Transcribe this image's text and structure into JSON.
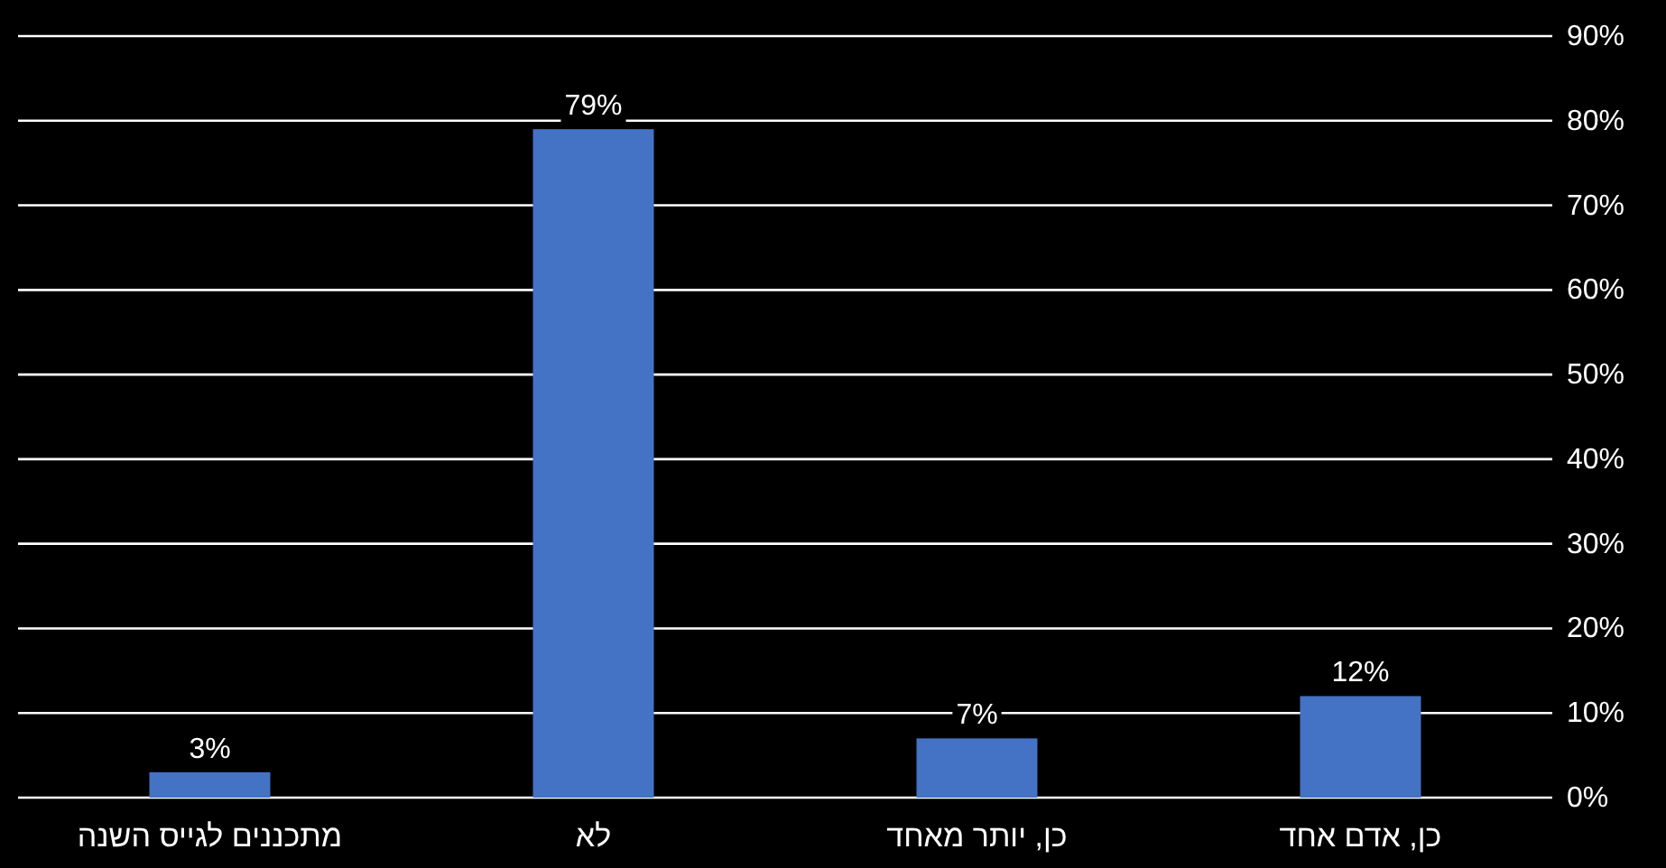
{
  "chart_data": {
    "type": "bar",
    "categories": [
      "מתכננים לגייס השנה",
      "לא",
      "כן, יותר מאחד",
      "כן, אדם אחד"
    ],
    "values": [
      3,
      79,
      7,
      12
    ],
    "value_labels": [
      "3%",
      "79%",
      "7%",
      "12%"
    ],
    "color": "#4472c4",
    "ylim": [
      0,
      90
    ],
    "yticks": [
      {
        "value": 0,
        "label": "0%"
      },
      {
        "value": 10,
        "label": "10%"
      },
      {
        "value": 20,
        "label": "20%"
      },
      {
        "value": 30,
        "label": "30%"
      },
      {
        "value": 40,
        "label": "40%"
      },
      {
        "value": 50,
        "label": "50%"
      },
      {
        "value": 60,
        "label": "60%"
      },
      {
        "value": 70,
        "label": "70%"
      },
      {
        "value": 80,
        "label": "80%"
      },
      {
        "value": 90,
        "label": "90%"
      }
    ],
    "grid": "y"
  }
}
